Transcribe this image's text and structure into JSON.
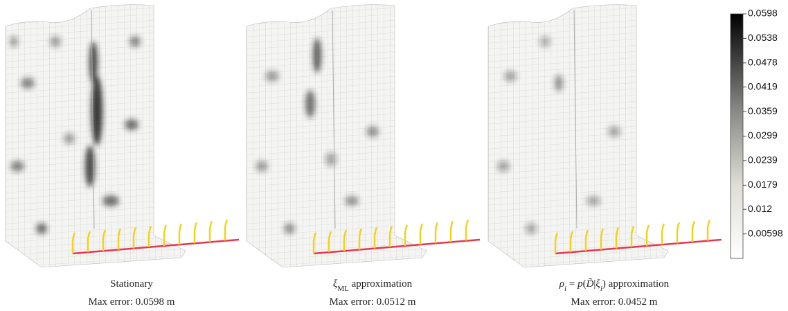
{
  "panels": [
    {
      "caption": [
        {
          "text": "Stationary"
        }
      ],
      "error": "Max error: 0.0598 m"
    },
    {
      "caption": [
        {
          "text": "ξ",
          "style": "italic"
        },
        {
          "text": "ML",
          "style": "sub"
        },
        {
          "text": " approximation"
        }
      ],
      "error": "Max error: 0.0512 m"
    },
    {
      "caption": [
        {
          "text": "ρ",
          "style": "italic"
        },
        {
          "text": "i",
          "style": "sub-italic"
        },
        {
          "text": " = "
        },
        {
          "text": "p",
          "style": "italic"
        },
        {
          "text": "("
        },
        {
          "text": "D̃",
          "style": "italic"
        },
        {
          "text": "|"
        },
        {
          "text": "ξ",
          "style": "italic"
        },
        {
          "text": "i",
          "style": "sub-italic"
        },
        {
          "text": ") approximation"
        }
      ],
      "error": "Max error: 0.0452 m"
    }
  ],
  "colorbar": {
    "lim": [
      0,
      0.0598
    ],
    "ticks": [
      0.0598,
      0.0538,
      0.0478,
      0.0419,
      0.0359,
      0.0299,
      0.0239,
      0.0179,
      0.012,
      0.00598
    ]
  }
}
